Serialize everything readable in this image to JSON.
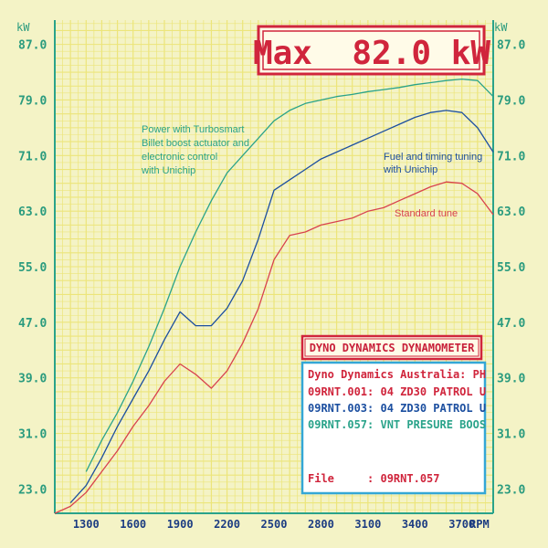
{
  "chart_data": {
    "type": "line",
    "title": "",
    "xlabel": "RPM",
    "ylabel": "kW",
    "xlim": [
      1100,
      3900
    ],
    "ylim": [
      19.5,
      90.5
    ],
    "y_ticks": [
      "23.0",
      "31.0",
      "39.0",
      "47.0",
      "55.0",
      "63.0",
      "71.0",
      "79.0",
      "87.0"
    ],
    "x_ticks": [
      "1300",
      "1600",
      "1900",
      "2200",
      "2500",
      "2800",
      "3100",
      "3400",
      "3700"
    ],
    "grid": true,
    "max_label": "Max  82.0 kW",
    "series": [
      {
        "name": "Power with Turbosmart Billet boost actuator and electronic control with Unichip",
        "color": "#2aa38a",
        "x": [
          1300,
          1400,
          1500,
          1600,
          1700,
          1800,
          1900,
          2000,
          2100,
          2200,
          2300,
          2400,
          2500,
          2600,
          2700,
          2800,
          2900,
          3000,
          3100,
          3200,
          3300,
          3400,
          3500,
          3600,
          3700,
          3800,
          3900
        ],
        "y": [
          25.5,
          30,
          34,
          38.5,
          43.5,
          49,
          55,
          60,
          64.5,
          68.5,
          71,
          73.5,
          76,
          77.5,
          78.5,
          79,
          79.5,
          79.8,
          80.2,
          80.5,
          80.8,
          81.2,
          81.5,
          81.8,
          82,
          81.8,
          79.5
        ]
      },
      {
        "name": "Fuel and timing tuning with Unichip",
        "color": "#1c4fa0",
        "x": [
          1200,
          1300,
          1400,
          1500,
          1600,
          1700,
          1800,
          1900,
          2000,
          2100,
          2200,
          2300,
          2400,
          2500,
          2600,
          2700,
          2800,
          2900,
          3000,
          3100,
          3200,
          3300,
          3400,
          3500,
          3600,
          3700,
          3800,
          3900
        ],
        "y": [
          21,
          23.5,
          27.5,
          32,
          36,
          40,
          44.5,
          48.5,
          46.5,
          46.5,
          49,
          53,
          59,
          66,
          67.5,
          69,
          70.5,
          71.5,
          72.5,
          73.5,
          74.5,
          75.5,
          76.5,
          77.2,
          77.5,
          77.2,
          75,
          71.5
        ]
      },
      {
        "name": "Standard tune",
        "color": "#d8424e",
        "x": [
          1100,
          1200,
          1300,
          1400,
          1500,
          1600,
          1700,
          1800,
          1900,
          2000,
          2100,
          2200,
          2300,
          2400,
          2500,
          2600,
          2700,
          2800,
          2900,
          3000,
          3100,
          3200,
          3300,
          3400,
          3500,
          3600,
          3700,
          3800,
          3900
        ],
        "y": [
          19.5,
          20.5,
          22.5,
          25.5,
          28.5,
          32,
          35,
          38.5,
          41,
          39.5,
          37.5,
          40,
          44,
          49,
          56,
          59.5,
          60,
          61,
          61.5,
          62,
          63,
          63.5,
          64.5,
          65.5,
          66.5,
          67.2,
          67,
          65.5,
          62.5
        ]
      }
    ],
    "annotations": {
      "green": [
        "Power with Turbosmart",
        "Billet boost actuator and",
        "electronic control",
        "with Unichip"
      ],
      "blue": [
        "Fuel and timing tuning",
        "with Unichip"
      ],
      "red": [
        "Standard tune"
      ]
    },
    "info_box": {
      "header": "DYNO DYNAMICS DYNAMOMETER",
      "line1": "Dyno Dynamics Australia: PH",
      "line2": "09RNT.001: 04 ZD30 PATROL U",
      "line3": "09RNT.003: 04 ZD30 PATROL U",
      "line4": "09RNT.057: VNT PRESURE BOOS",
      "file_line": "File     : 09RNT.057"
    },
    "colors": {
      "background": "#f4f3c6",
      "grid": "#ece57a",
      "axis": "#2aa38a",
      "box_red": "#d0253c",
      "box_blue": "#34a7d6"
    }
  }
}
